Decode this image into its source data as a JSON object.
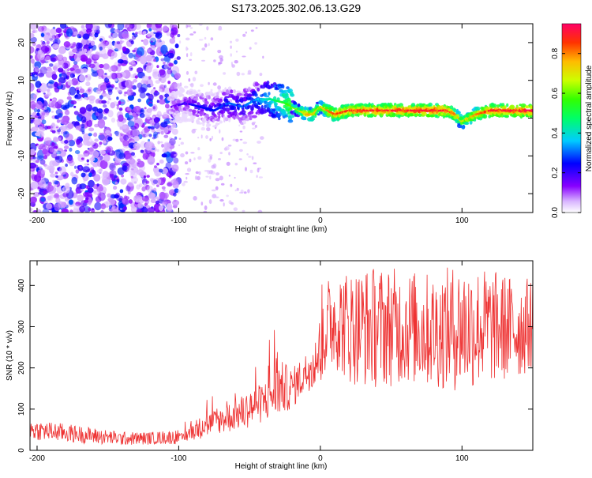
{
  "title": "S173.2025.302.06.13.G29",
  "chart_data": [
    {
      "type": "heatmap",
      "xlabel": "Height of straight line (km)",
      "ylabel": "Frequency (Hz)",
      "xlim": [
        -205,
        150
      ],
      "ylim": [
        -25,
        25
      ],
      "xticks": [
        -200,
        -100,
        0,
        100
      ],
      "yticks": [
        -20,
        -10,
        0,
        10,
        20
      ],
      "colorbar": {
        "label": "Normalized spectral amplitude",
        "range": [
          0,
          0.95
        ],
        "ticks": [
          0,
          0.2,
          0.4,
          0.6,
          0.8
        ],
        "colors": [
          "#ffffff",
          "#cc99ff",
          "#8800ff",
          "#0000ff",
          "#00ffff",
          "#00ff00",
          "#ffff00",
          "#ff8800",
          "#ff0000",
          "#ff0066"
        ]
      },
      "noise_region": {
        "x_from": -205,
        "x_to": -100,
        "density": "high",
        "amplitude": [
          0.05,
          0.3
        ]
      },
      "ridge": {
        "description": "spectral line (frequency in Hz) along height",
        "x": [
          -105,
          -95,
          -85,
          -75,
          -65,
          -55,
          -45,
          -35,
          -25,
          -15,
          -10,
          -5,
          0,
          5,
          10,
          20,
          40,
          60,
          80,
          90,
          95,
          100,
          105,
          110,
          120,
          140,
          150
        ],
        "frequency": [
          3,
          4,
          3,
          2,
          4,
          3,
          5,
          5,
          4,
          2,
          1,
          1,
          3,
          2,
          1,
          2,
          2,
          2,
          2,
          2,
          1,
          -1,
          0,
          1,
          2,
          2,
          2
        ],
        "amplitude": [
          0.15,
          0.2,
          0.25,
          0.25,
          0.3,
          0.3,
          0.35,
          0.45,
          0.55,
          0.65,
          0.8,
          0.75,
          0.7,
          0.8,
          0.85,
          0.88,
          0.9,
          0.9,
          0.92,
          0.9,
          0.8,
          0.7,
          0.75,
          0.8,
          0.9,
          0.92,
          0.95
        ]
      }
    },
    {
      "type": "line",
      "xlabel": "Height of straight line (km)",
      "ylabel": "SNR (10 * v/v)",
      "xlim": [
        -205,
        150
      ],
      "ylim": [
        0,
        460
      ],
      "xticks": [
        -200,
        -100,
        0,
        100
      ],
      "yticks": [
        0,
        100,
        200,
        300,
        400
      ],
      "color": "#ee3333",
      "series_envelope": {
        "x": [
          -205,
          -180,
          -160,
          -140,
          -120,
          -100,
          -90,
          -80,
          -70,
          -60,
          -50,
          -40,
          -30,
          -20,
          -10,
          0,
          10,
          20,
          40,
          60,
          80,
          100,
          120,
          140,
          150
        ],
        "y_low": [
          25,
          20,
          15,
          12,
          14,
          15,
          25,
          30,
          40,
          45,
          55,
          65,
          80,
          100,
          140,
          160,
          200,
          160,
          150,
          160,
          150,
          140,
          160,
          170,
          200
        ],
        "y_high": [
          75,
          65,
          55,
          45,
          45,
          50,
          110,
          140,
          160,
          190,
          220,
          250,
          340,
          280,
          320,
          400,
          440,
          440,
          450,
          440,
          430,
          460,
          440,
          420,
          420
        ]
      }
    }
  ]
}
